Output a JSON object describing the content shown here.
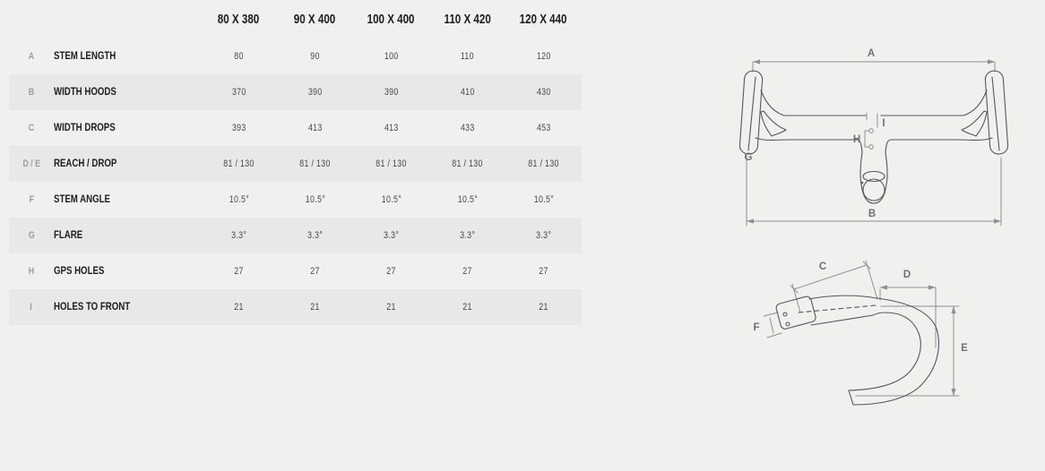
{
  "colors": {
    "background": "#f0f0ef",
    "stripe": "#e8e8e6",
    "header_text": "#1d1d1b",
    "label_text": "#1d1d1b",
    "key_text": "#9b9b9c",
    "value_text": "#474747",
    "diagram_line": "#56575c",
    "dim_line": "#8e8f92",
    "dim_label": "#6f7074"
  },
  "table": {
    "columns": [
      "80 X 380",
      "90 X 400",
      "100 X 400",
      "110 X 420",
      "120 X 440"
    ],
    "rows": [
      {
        "key": "A",
        "label": "STEM LENGTH",
        "values": [
          "80",
          "90",
          "100",
          "110",
          "120"
        ]
      },
      {
        "key": "B",
        "label": "WIDTH HOODS",
        "values": [
          "370",
          "390",
          "390",
          "410",
          "430"
        ]
      },
      {
        "key": "C",
        "label": "WIDTH DROPS",
        "values": [
          "393",
          "413",
          "413",
          "433",
          "453"
        ]
      },
      {
        "key": "D / E",
        "label": "REACH / DROP",
        "values": [
          "81 / 130",
          "81 / 130",
          "81 / 130",
          "81 / 130",
          "81 / 130"
        ]
      },
      {
        "key": "F",
        "label": "STEM ANGLE",
        "values": [
          "10.5°",
          "10.5°",
          "10.5°",
          "10.5°",
          "10.5°"
        ]
      },
      {
        "key": "G",
        "label": "FLARE",
        "values": [
          "3.3°",
          "3.3°",
          "3.3°",
          "3.3°",
          "3.3°"
        ]
      },
      {
        "key": "H",
        "label": "GPS HOLES",
        "values": [
          "27",
          "27",
          "27",
          "27",
          "27"
        ]
      },
      {
        "key": "I",
        "label": "HOLES TO FRONT",
        "values": [
          "21",
          "21",
          "21",
          "21",
          "21"
        ]
      }
    ]
  },
  "diagrams": {
    "top_view": {
      "label_a": "A",
      "label_b": "B",
      "label_g": "G",
      "label_h": "H",
      "label_i": "I"
    },
    "side_view": {
      "label_c": "C",
      "label_d": "D",
      "label_e": "E",
      "label_f": "F"
    }
  }
}
